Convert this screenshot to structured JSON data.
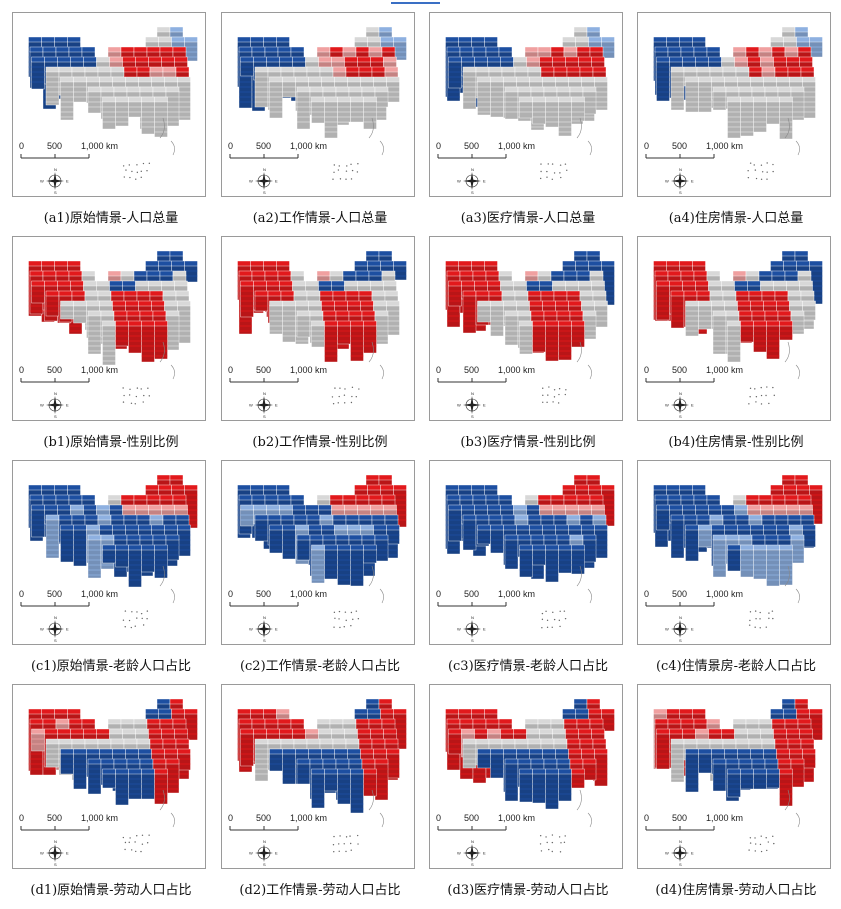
{
  "scale_bar": {
    "labels": [
      "0",
      "500",
      "1,000 km"
    ]
  },
  "compass": {
    "north": "N",
    "south": "S",
    "east": "E",
    "west": "W"
  },
  "colors": {
    "red": "#e2191c",
    "blue": "#1d4fa1",
    "light_red": "#f0a0a0",
    "light_blue": "#8eb0e0",
    "grey": "#d8d8d8"
  },
  "rows": [
    {
      "id": "a",
      "variable": "人口总量",
      "captions": [
        "(a1)原始情景-人口总量",
        "(a2)工作情景-人口总量",
        "(a3)医疗情景-人口总量",
        "(a4)住房情景-人口总量"
      ],
      "pattern": "population"
    },
    {
      "id": "b",
      "variable": "性别比例",
      "captions": [
        "(b1)原始情景-性别比例",
        "(b2)工作情景-性别比例",
        "(b3)医疗情景-性别比例",
        "(b4)住房情景-性别比例"
      ],
      "pattern": "sex_ratio"
    },
    {
      "id": "c",
      "variable": "老龄人口占比",
      "captions": [
        "(c1)原始情景-老龄人口占比",
        "(c2)工作情景-老龄人口占比",
        "(c3)医疗情景-老龄人口占比",
        "(c4)住情景房-老龄人口占比"
      ],
      "pattern": "aging"
    },
    {
      "id": "d",
      "variable": "劳动人口占比",
      "captions": [
        "(d1)原始情景-劳动人口占比",
        "(d2)工作情景-劳动人口占比",
        "(d3)医疗情景-劳动人口占比",
        "(d4)住房情景-劳动人口占比"
      ],
      "pattern": "labor"
    }
  ]
}
